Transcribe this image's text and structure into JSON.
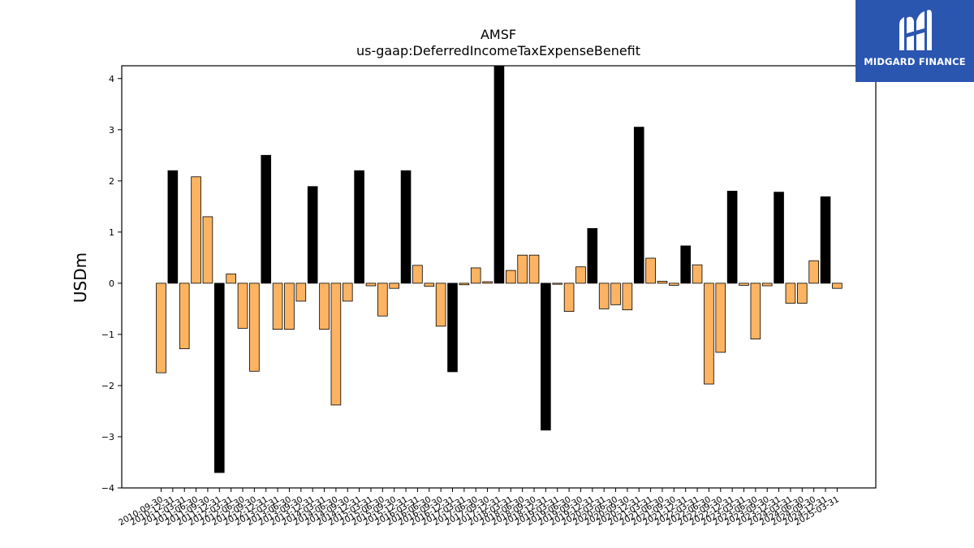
{
  "chart_data": {
    "type": "bar",
    "title": "AMSF",
    "subtitle": "us-gaap:DeferredIncomeTaxExpenseBenefit",
    "xlabel": "",
    "ylabel": "USDm",
    "ylim": [
      -4.0,
      4.25
    ],
    "yticks": [
      -4,
      -3,
      -2,
      -1,
      0,
      1,
      2,
      3,
      4
    ],
    "ytick_labels": [
      "−4",
      "−3",
      "−2",
      "−1",
      "0",
      "1",
      "2",
      "3",
      "4"
    ],
    "grid": false,
    "legend": "none",
    "colors": {
      "quarterly": "#fdb462",
      "annual": "#000000",
      "bar_edge": "#000000",
      "axes": "#000000"
    },
    "categories": [
      "2010-09-30",
      "2010-12-31",
      "2011-03-31",
      "2011-06-30",
      "2011-09-30",
      "2011-12-31",
      "2012-03-31",
      "2012-06-30",
      "2012-09-30",
      "2012-12-31",
      "2013-03-31",
      "2013-06-30",
      "2013-09-30",
      "2013-12-31",
      "2014-03-31",
      "2014-06-30",
      "2014-09-30",
      "2014-12-31",
      "2015-03-31",
      "2015-06-30",
      "2015-09-30",
      "2015-12-31",
      "2016-03-31",
      "2016-06-30",
      "2016-09-30",
      "2016-12-31",
      "2017-03-31",
      "2017-06-30",
      "2017-09-30",
      "2017-12-31",
      "2018-03-31",
      "2018-06-30",
      "2018-09-30",
      "2018-12-31",
      "2019-03-31",
      "2019-06-30",
      "2019-09-30",
      "2019-12-31",
      "2020-03-31",
      "2020-06-30",
      "2020-09-30",
      "2020-12-31",
      "2021-03-31",
      "2021-06-30",
      "2021-09-30",
      "2021-12-31",
      "2022-03-31",
      "2022-06-30",
      "2022-09-30",
      "2022-12-31",
      "2023-03-31",
      "2023-06-30",
      "2023-09-30",
      "2023-12-31",
      "2024-03-31",
      "2024-06-30",
      "2024-09-30",
      "2024-12-31",
      "2025-03-31"
    ],
    "values": [
      -1.75,
      2.2,
      -1.28,
      2.08,
      1.3,
      -3.7,
      0.18,
      -0.88,
      -1.72,
      2.5,
      -0.9,
      -0.9,
      -0.35,
      1.89,
      -0.9,
      -2.38,
      -0.35,
      2.2,
      -0.05,
      -0.64,
      -0.1,
      2.2,
      0.35,
      -0.06,
      -0.84,
      -1.73,
      -0.03,
      0.3,
      0.03,
      4.25,
      0.25,
      0.55,
      0.55,
      -2.87,
      -0.02,
      -0.55,
      0.32,
      1.07,
      -0.5,
      -0.42,
      -0.52,
      3.05,
      0.49,
      0.04,
      -0.04,
      0.73,
      0.36,
      -1.97,
      -1.35,
      1.8,
      -0.04,
      -1.09,
      -0.05,
      1.78,
      -0.39,
      -0.39,
      0.44,
      1.69,
      -0.1
    ],
    "annual_flags": [
      0,
      1,
      0,
      0,
      0,
      1,
      0,
      0,
      0,
      1,
      0,
      0,
      0,
      1,
      0,
      0,
      0,
      1,
      0,
      0,
      0,
      1,
      0,
      0,
      0,
      1,
      0,
      0,
      0,
      1,
      0,
      0,
      0,
      1,
      0,
      0,
      0,
      1,
      0,
      0,
      0,
      1,
      0,
      0,
      0,
      1,
      0,
      0,
      0,
      1,
      0,
      0,
      0,
      1,
      0,
      0,
      0,
      1,
      0
    ]
  },
  "logo": {
    "text": "MIDGARD FINANCE",
    "icon": "midgard-m-logo-icon",
    "background": "#2a56b0"
  }
}
